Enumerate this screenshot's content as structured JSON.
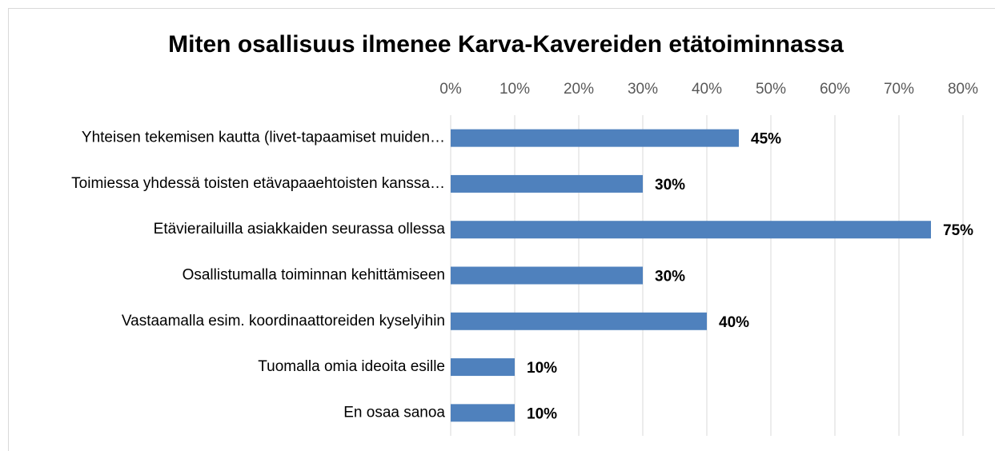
{
  "chart_data": {
    "type": "bar",
    "orientation": "horizontal",
    "title": "Miten osallisuus ilmenee Karva-Kavereiden etätoiminnassa",
    "categories": [
      "Yhteisen tekemisen kautta (livet-tapaamiset muiden…",
      "Toimiessa yhdessä toisten etävapaaehtoisten kanssa…",
      "Etävierailuilla asiakkaiden seurassa ollessa",
      "Osallistumalla toiminnan kehittämiseen",
      "Vastaamalla esim. koordinaattoreiden kyselyihin",
      "Tuomalla omia ideoita esille",
      "En osaa sanoa"
    ],
    "values": [
      45,
      30,
      75,
      30,
      40,
      10,
      10
    ],
    "value_labels": [
      "45%",
      "30%",
      "75%",
      "30%",
      "40%",
      "10%",
      "10%"
    ],
    "color": "#4f81bd",
    "xlim": [
      0,
      80
    ],
    "xticks": [
      {
        "value": 0,
        "label": "0%"
      },
      {
        "value": 10,
        "label": "10%"
      },
      {
        "value": 20,
        "label": "20%"
      },
      {
        "value": 30,
        "label": "30%"
      },
      {
        "value": 40,
        "label": "40%"
      },
      {
        "value": 50,
        "label": "50%"
      },
      {
        "value": 60,
        "label": "60%"
      },
      {
        "value": 70,
        "label": "70%"
      },
      {
        "value": 80,
        "label": "80%"
      }
    ],
    "grid": true
  }
}
